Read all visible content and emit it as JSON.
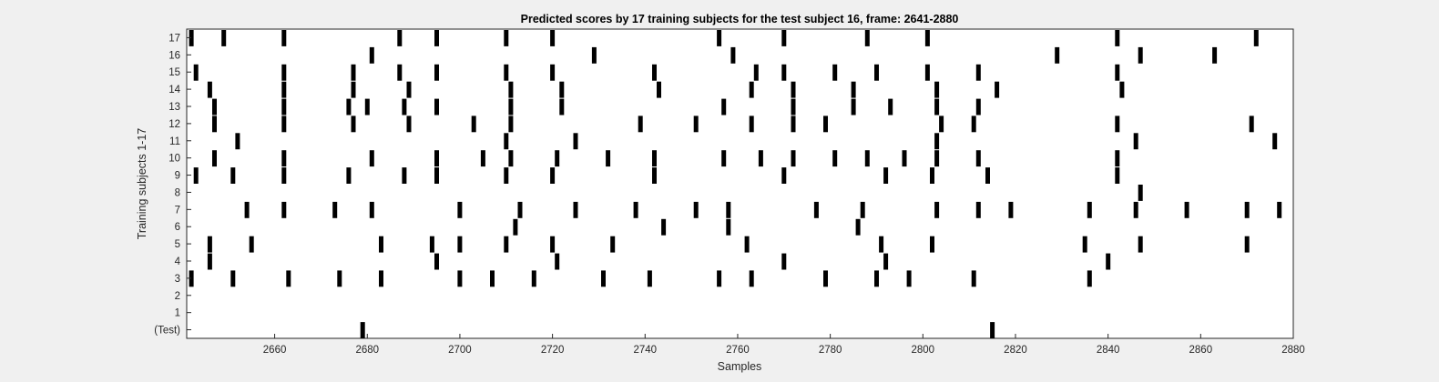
{
  "chart_data": {
    "type": "raster",
    "title": "Predicted scores by 17 training subjects for the test subject 16, frame: 2641-2880",
    "xlabel": "Samples",
    "ylabel": "Training subjects 1-17",
    "xlim": [
      2641,
      2880
    ],
    "xticks": [
      2660,
      2680,
      2700,
      2720,
      2740,
      2760,
      2780,
      2800,
      2820,
      2840,
      2860,
      2880
    ],
    "rows": [
      "(Test)",
      "1",
      "2",
      "3",
      "4",
      "5",
      "6",
      "7",
      "8",
      "9",
      "10",
      "11",
      "12",
      "13",
      "14",
      "15",
      "16",
      "17"
    ],
    "grid": false,
    "colors": {
      "background": "#f0f0f0",
      "axes": "#ffffff",
      "marks": "#000000",
      "ticks": "#262626"
    },
    "events": [
      {
        "row": "(Test)",
        "x": [
          2679,
          2815
        ]
      },
      {
        "row": "1",
        "x": []
      },
      {
        "row": "2",
        "x": []
      },
      {
        "row": "3",
        "x": [
          2642,
          2651,
          2663,
          2674,
          2683,
          2700,
          2707,
          2716,
          2731,
          2741,
          2756,
          2763,
          2779,
          2790,
          2797,
          2811,
          2836
        ]
      },
      {
        "row": "4",
        "x": [
          2646,
          2695,
          2721,
          2770,
          2792,
          2840
        ]
      },
      {
        "row": "5",
        "x": [
          2646,
          2655,
          2683,
          2694,
          2700,
          2710,
          2720,
          2733,
          2762,
          2791,
          2802,
          2835,
          2847,
          2870
        ]
      },
      {
        "row": "6",
        "x": [
          2712,
          2744,
          2758,
          2786
        ]
      },
      {
        "row": "7",
        "x": [
          2654,
          2662,
          2673,
          2681,
          2700,
          2713,
          2725,
          2738,
          2751,
          2758,
          2777,
          2787,
          2803,
          2812,
          2819,
          2836,
          2846,
          2857,
          2870,
          2877
        ]
      },
      {
        "row": "8",
        "x": [
          2847
        ]
      },
      {
        "row": "9",
        "x": [
          2643,
          2651,
          2662,
          2676,
          2688,
          2695,
          2710,
          2720,
          2742,
          2770,
          2792,
          2802,
          2814,
          2842
        ]
      },
      {
        "row": "10",
        "x": [
          2647,
          2662,
          2681,
          2695,
          2705,
          2711,
          2721,
          2732,
          2742,
          2757,
          2765,
          2772,
          2781,
          2788,
          2796,
          2803,
          2812,
          2842
        ]
      },
      {
        "row": "11",
        "x": [
          2652,
          2710,
          2725,
          2803,
          2846,
          2876
        ]
      },
      {
        "row": "12",
        "x": [
          2647,
          2662,
          2677,
          2689,
          2703,
          2711,
          2739,
          2751,
          2763,
          2772,
          2779,
          2804,
          2811,
          2842,
          2871
        ]
      },
      {
        "row": "13",
        "x": [
          2647,
          2662,
          2676,
          2680,
          2688,
          2695,
          2711,
          2722,
          2757,
          2772,
          2785,
          2793,
          2803,
          2812
        ]
      },
      {
        "row": "14",
        "x": [
          2646,
          2662,
          2677,
          2689,
          2711,
          2722,
          2743,
          2763,
          2772,
          2785,
          2803,
          2816,
          2843
        ]
      },
      {
        "row": "15",
        "x": [
          2643,
          2662,
          2677,
          2687,
          2695,
          2710,
          2720,
          2742,
          2764,
          2770,
          2781,
          2790,
          2801,
          2812,
          2842
        ]
      },
      {
        "row": "16",
        "x": [
          2681,
          2729,
          2759,
          2829,
          2847,
          2863
        ]
      },
      {
        "row": "17",
        "x": [
          2642,
          2649,
          2662,
          2687,
          2695,
          2710,
          2720,
          2756,
          2770,
          2788,
          2801,
          2842,
          2872
        ]
      }
    ]
  }
}
